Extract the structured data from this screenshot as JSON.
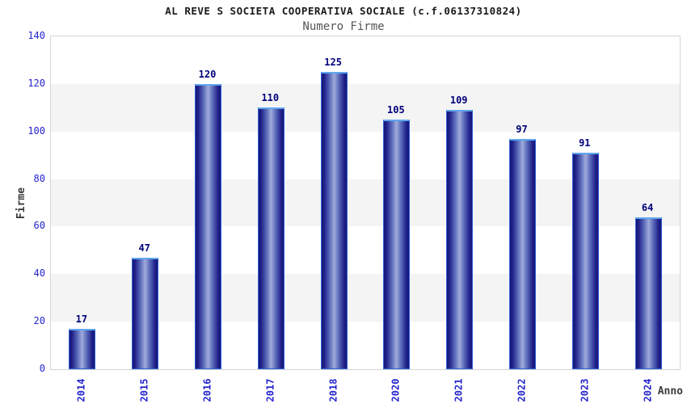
{
  "chart_data": {
    "type": "bar",
    "title": "AL REVE S SOCIETA COOPERATIVA SOCIALE (c.f.06137310824)",
    "subtitle": "Numero Firme",
    "xlabel": "Anno",
    "ylabel": "Firme",
    "categories": [
      "2014",
      "2015",
      "2016",
      "2017",
      "2018",
      "2020",
      "2021",
      "2022",
      "2023",
      "2024"
    ],
    "values": [
      17,
      47,
      120,
      110,
      125,
      105,
      109,
      97,
      91,
      64
    ],
    "ylim": [
      0,
      140
    ],
    "yticks": [
      0,
      20,
      40,
      60,
      80,
      100,
      120,
      140
    ],
    "legend": "none",
    "grid": "alternating horizontal bands every 20 units",
    "bar_value_labels_shown": true
  },
  "colors": {
    "axis_tick_blue": "#2424cf",
    "value_label_navy": "#00007a",
    "bar_edge": "#161678",
    "bar_mid": "#20208a",
    "bar_inner": "#5b6cba",
    "bar_center": "#a0abdb",
    "bar_border": "#2f62d4",
    "bar_top_border": "#5ea6ee",
    "band_gray": "#f4f4f4",
    "band_white": "#ffffff",
    "plot_border": "#d4d4d4",
    "title_color": "#1a1a1a",
    "subtitle_color": "#555555",
    "axis_title_color": "#3c3c3c"
  }
}
